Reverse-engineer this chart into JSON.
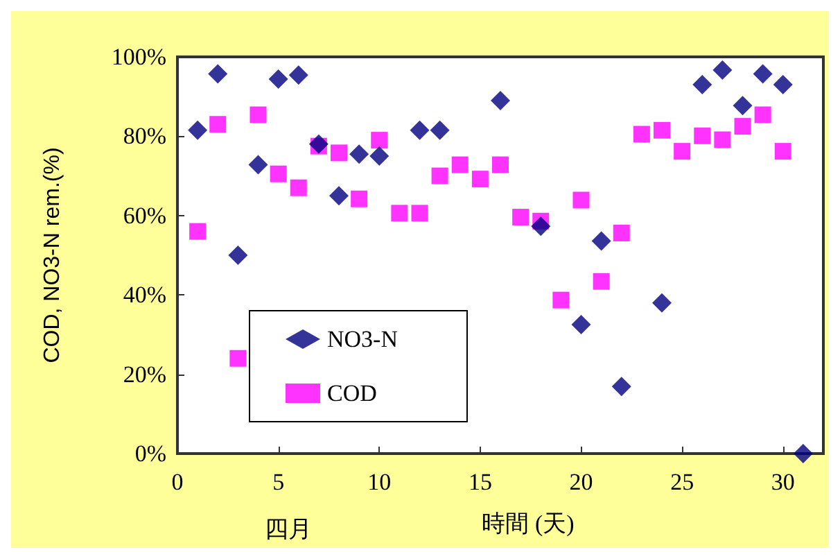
{
  "chart_data": {
    "type": "scatter",
    "xlabel": "時間 (天)",
    "ylabel": "COD, NO3-N rem.(%)",
    "annotations": [
      "四月"
    ],
    "xlim": [
      0,
      32
    ],
    "xticks": [
      0,
      5,
      10,
      15,
      20,
      25,
      30
    ],
    "ylim": [
      0,
      100
    ],
    "yticks": [
      {
        "value": 0,
        "label": "0%"
      },
      {
        "value": 20,
        "label": "20%"
      },
      {
        "value": 40,
        "label": "40%"
      },
      {
        "value": 60,
        "label": "60%"
      },
      {
        "value": 80,
        "label": "80%"
      },
      {
        "value": 100,
        "label": "100%"
      }
    ],
    "grid": false,
    "legend": "left",
    "series": [
      {
        "name": "NO3-N",
        "color": "#000080",
        "marker": "diamond",
        "x": [
          1,
          2,
          3,
          4,
          5,
          6,
          7,
          8,
          9,
          10,
          12,
          13,
          16,
          18,
          20,
          21,
          22,
          24,
          26,
          27,
          28,
          29,
          30,
          31
        ],
        "values": [
          81.5,
          95.7,
          50,
          72.8,
          94.4,
          95.4,
          78,
          65,
          75.5,
          75,
          81.5,
          81.5,
          89,
          57.3,
          32.5,
          53.6,
          16.9,
          38,
          93,
          96.7,
          87.7,
          95.7,
          93,
          0
        ]
      },
      {
        "name": "COD",
        "color": "#ff00ff",
        "marker": "square",
        "x": [
          1,
          2,
          3,
          4,
          5,
          6,
          7,
          8,
          9,
          10,
          11,
          12,
          13,
          14,
          15,
          16,
          17,
          18,
          19,
          20,
          21,
          22,
          23,
          24,
          25,
          26,
          27,
          28,
          29,
          30
        ],
        "values": [
          56,
          83,
          24,
          85.4,
          70.5,
          67,
          77.5,
          75.8,
          64.2,
          79,
          60.6,
          60.6,
          70,
          72.8,
          69.2,
          72.8,
          59.6,
          58.6,
          38.7,
          63.9,
          43.4,
          55.6,
          80.5,
          81.5,
          76.2,
          80.1,
          79.1,
          82.5,
          85.4,
          76.2
        ]
      }
    ]
  }
}
